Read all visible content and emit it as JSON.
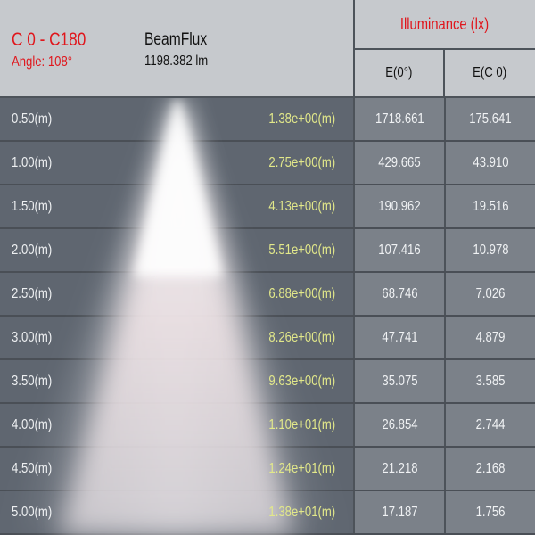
{
  "header": {
    "plane": "C 0 - C180",
    "angle": "Angle: 108°",
    "flux_label": "BeamFlux",
    "flux_value": "1198.382 lm",
    "illuminance_title": "Illuminance (lx)",
    "col_e0": "E(0°)",
    "col_ec0": "E(C 0)"
  },
  "colors": {
    "accent_red": "#e0161c",
    "diameter_yellow": "#e2e88a",
    "header_bg": "#c6c9cd",
    "row_bg": "#5f6670"
  },
  "rows": [
    {
      "distance": "0.50(m)",
      "diameter": "1.38e+00(m)",
      "e0": "1718.661",
      "ec0": "175.641"
    },
    {
      "distance": "1.00(m)",
      "diameter": "2.75e+00(m)",
      "e0": "429.665",
      "ec0": "43.910"
    },
    {
      "distance": "1.50(m)",
      "diameter": "4.13e+00(m)",
      "e0": "190.962",
      "ec0": "19.516"
    },
    {
      "distance": "2.00(m)",
      "diameter": "5.51e+00(m)",
      "e0": "107.416",
      "ec0": "10.978"
    },
    {
      "distance": "2.50(m)",
      "diameter": "6.88e+00(m)",
      "e0": "68.746",
      "ec0": "7.026"
    },
    {
      "distance": "3.00(m)",
      "diameter": "8.26e+00(m)",
      "e0": "47.741",
      "ec0": "4.879"
    },
    {
      "distance": "3.50(m)",
      "diameter": "9.63e+00(m)",
      "e0": "35.075",
      "ec0": "3.585"
    },
    {
      "distance": "4.00(m)",
      "diameter": "1.10e+01(m)",
      "e0": "26.854",
      "ec0": "2.744"
    },
    {
      "distance": "4.50(m)",
      "diameter": "1.24e+01(m)",
      "e0": "21.218",
      "ec0": "2.168"
    },
    {
      "distance": "5.00(m)",
      "diameter": "1.38e+01(m)",
      "e0": "17.187",
      "ec0": "1.756"
    }
  ]
}
